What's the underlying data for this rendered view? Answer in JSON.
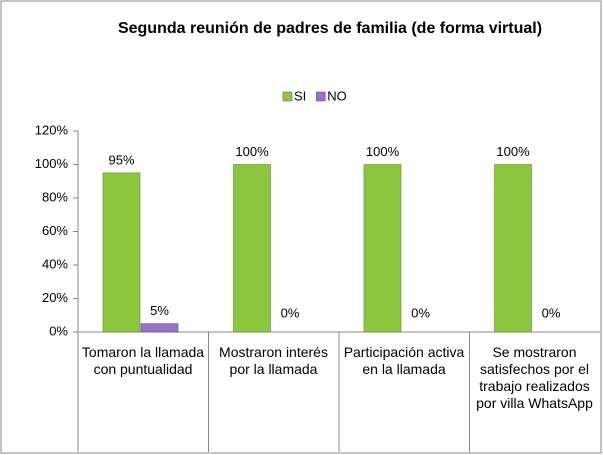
{
  "chart_data": {
    "type": "bar",
    "title": "Segunda reunión de padres de familia (de forma virtual)",
    "categories": [
      "Tomaron la llamada con puntualidad",
      "Mostraron interés por la llamada",
      "Participación activa en la llamada",
      "Se mostraron satisfechos por el trabajo realizados por villa WhatsApp"
    ],
    "series": [
      {
        "name": "SI",
        "color": "#8dc63f",
        "values": [
          95,
          100,
          100,
          100
        ],
        "value_labels": [
          "95%",
          "100%",
          "100%",
          "100%"
        ]
      },
      {
        "name": "NO",
        "color": "#9b6fcb",
        "values": [
          5,
          0,
          0,
          0
        ],
        "value_labels": [
          "5%",
          "0%",
          "0%",
          "0%"
        ]
      }
    ],
    "ylim": [
      0,
      120
    ],
    "yticks": [
      {
        "value": 0,
        "label": "0%"
      },
      {
        "value": 20,
        "label": "20%"
      },
      {
        "value": 40,
        "label": "40%"
      },
      {
        "value": 60,
        "label": "60%"
      },
      {
        "value": 80,
        "label": "80%"
      },
      {
        "value": 100,
        "label": "100%"
      },
      {
        "value": 120,
        "label": "120%"
      }
    ],
    "legend": "top"
  }
}
